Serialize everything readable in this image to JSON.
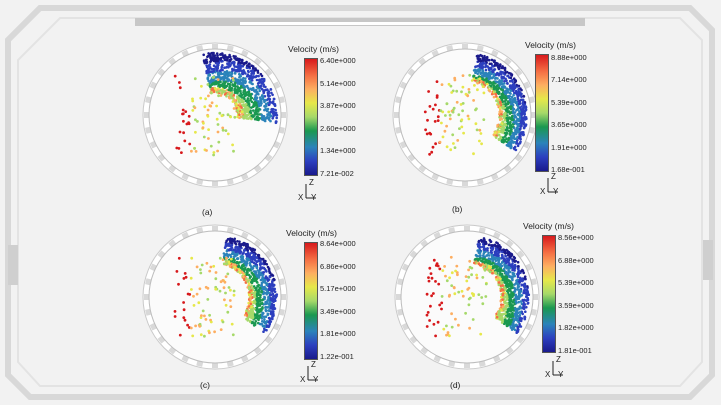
{
  "panels": [
    {
      "id": "a",
      "caption": "(a)",
      "legend_title": "Velocity (m/s)",
      "ticks": [
        "6.40e+000",
        "5.14e+000",
        "3.87e+000",
        "2.60e+000",
        "1.34e+000",
        "7.21e-002"
      ]
    },
    {
      "id": "b",
      "caption": "(b)",
      "legend_title": "Velocity (m/s)",
      "ticks": [
        "8.88e+000",
        "7.14e+000",
        "5.39e+000",
        "3.65e+000",
        "1.91e+000",
        "1.68e-001"
      ]
    },
    {
      "id": "c",
      "caption": "(c)",
      "legend_title": "Velocity (m/s)",
      "ticks": [
        "8.64e+000",
        "6.86e+000",
        "5.17e+000",
        "3.49e+000",
        "1.81e+000",
        "1.22e-001"
      ]
    },
    {
      "id": "d",
      "caption": "(d)",
      "legend_title": "Velocity (m/s)",
      "ticks": [
        "8.56e+000",
        "6.88e+000",
        "5.39e+000",
        "3.59e+000",
        "1.82e+000",
        "1.81e-001"
      ]
    }
  ],
  "axis_labels": {
    "z": "Z",
    "x": "X",
    "y": "Y"
  }
}
